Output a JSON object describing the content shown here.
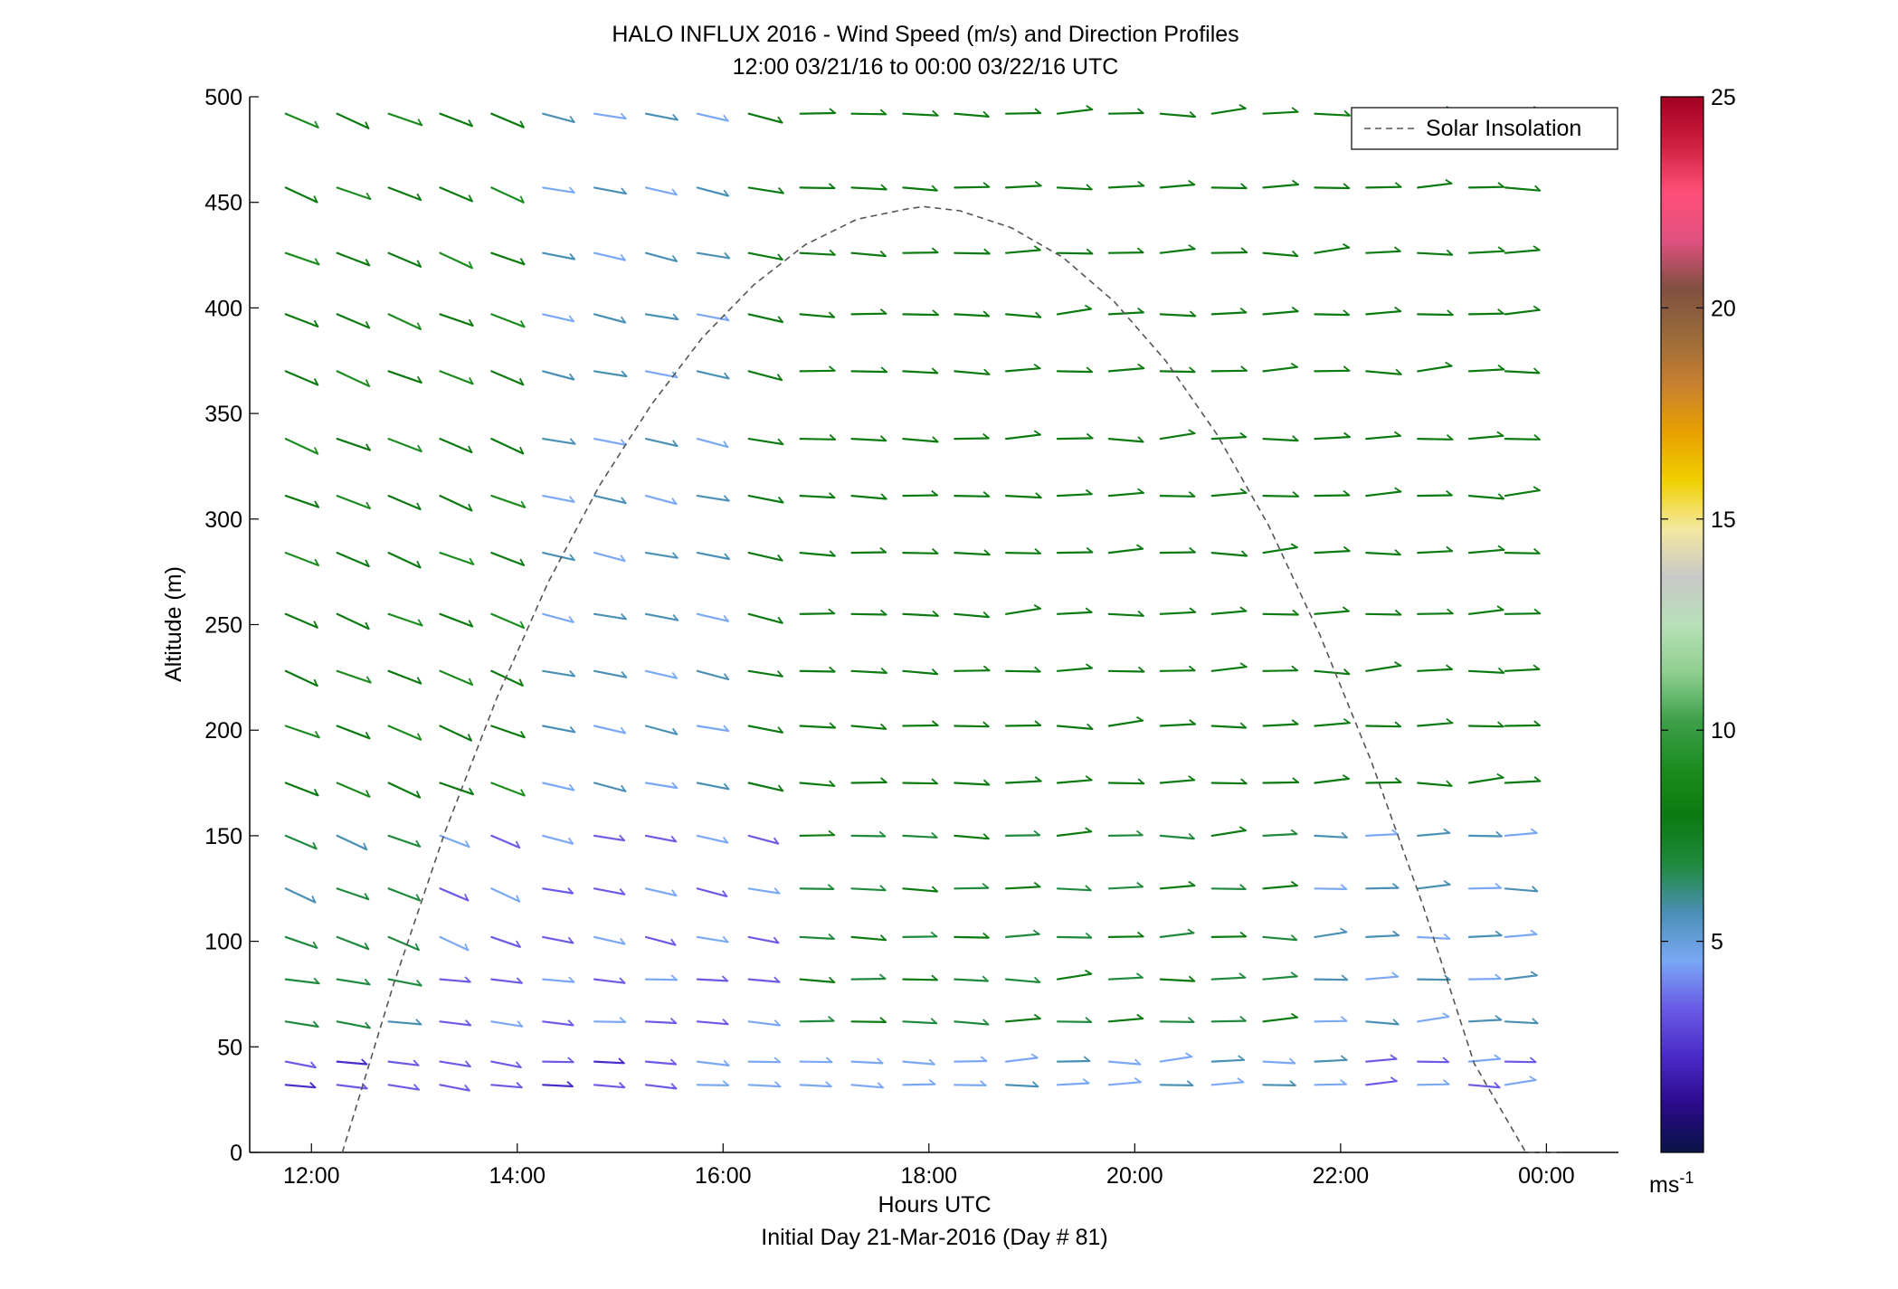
{
  "chart_data": {
    "type": "wind_barb_profile",
    "title": "HALO INFLUX 2016 - Wind Speed (m/s) and Direction Profiles",
    "subtitle": "12:00 03/21/16 to 00:00 03/22/16  UTC",
    "xlabel": "Hours UTC",
    "ylabel": "Altitude (m)",
    "footer": "Initial Day 21-Mar-2016 (Day # 81)",
    "xlim": [
      11.4,
      24.7
    ],
    "ylim": [
      0,
      500
    ],
    "x_ticks": [
      12,
      14,
      16,
      18,
      20,
      22,
      24
    ],
    "x_tick_labels": [
      "12:00",
      "14:00",
      "16:00",
      "18:00",
      "20:00",
      "22:00",
      "00:00"
    ],
    "y_ticks": [
      0,
      50,
      100,
      150,
      200,
      250,
      300,
      350,
      400,
      450,
      500
    ],
    "y_tick_labels": [
      "0",
      "50",
      "100",
      "150",
      "200",
      "250",
      "300",
      "350",
      "400",
      "450",
      "500"
    ],
    "legend": {
      "position": "top-right",
      "entries": [
        "Solar Insolation"
      ]
    },
    "colorbar": {
      "min": 0,
      "max": 25,
      "tick_values": [
        5,
        10,
        15,
        20,
        25
      ],
      "tick_labels": [
        "5",
        "10",
        "15",
        "20",
        "25"
      ],
      "unit_label": "ms",
      "unit_exponent": "-1",
      "colors": [
        "#0a1446",
        "#2a0a8a",
        "#4a2ac8",
        "#6a5ae6",
        "#7aa8f5",
        "#4a8fb4",
        "#1f8a3d",
        "#0b7a10",
        "#1c8c20",
        "#3ea04a",
        "#8fcf90",
        "#b8e0b8",
        "#c8c8c8",
        "#f4e8a0",
        "#f0d000",
        "#e8a000",
        "#c88030",
        "#9a6a3a",
        "#805040",
        "#e05080",
        "#ff5078",
        "#d02040",
        "#a00020"
      ]
    },
    "solar_insolation": {
      "style": "dashed",
      "color": "#555555",
      "x": [
        12.3,
        12.8,
        13.3,
        13.8,
        14.3,
        14.8,
        15.3,
        15.8,
        16.3,
        16.8,
        17.3,
        17.8,
        17.95,
        18.3,
        18.8,
        19.3,
        19.8,
        20.3,
        20.8,
        21.3,
        21.8,
        22.3,
        22.8,
        23.3,
        23.8,
        24.15
      ],
      "y": [
        0,
        80,
        152,
        215,
        270,
        316,
        354,
        386,
        411,
        430,
        442,
        447,
        448,
        446,
        438,
        424,
        403,
        375,
        340,
        297,
        245,
        185,
        117,
        42,
        -20,
        0
      ]
    },
    "barbs": {
      "times": [
        11.75,
        12.25,
        12.75,
        13.25,
        13.75,
        14.25,
        14.75,
        15.25,
        15.75,
        16.25,
        16.75,
        17.25,
        17.75,
        18.25,
        18.75,
        19.25,
        19.75,
        20.25,
        20.75,
        21.25,
        21.75,
        22.25,
        22.75,
        23.25,
        23.6
      ],
      "altitudes": [
        32,
        43,
        62,
        82,
        102,
        125,
        150,
        175,
        202,
        228,
        255,
        284,
        311,
        338,
        370,
        397,
        426,
        457,
        492
      ],
      "summary": "Wind barbs: low altitudes (30-150 m) purple/light-blue with slow speeds (~3-5 m/s), upper levels mostly green (~7-9 m/s); near-westerly flow with slight backing aloft in the afternoon."
    }
  }
}
